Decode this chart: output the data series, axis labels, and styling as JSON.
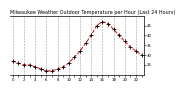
{
  "title": "Milwaukee Weather Outdoor Temperature per Hour (Last 24 Hours)",
  "hours": [
    0,
    1,
    2,
    3,
    4,
    5,
    6,
    7,
    8,
    9,
    10,
    11,
    12,
    13,
    14,
    15,
    16,
    17,
    18,
    19,
    20,
    21,
    22,
    23
  ],
  "temps": [
    27,
    26,
    25,
    25,
    24,
    23,
    22,
    22,
    23,
    24,
    26,
    29,
    32,
    36,
    40,
    45,
    47,
    46,
    43,
    40,
    37,
    34,
    32,
    30
  ],
  "line_color": "#dd0000",
  "marker_color": "#000000",
  "grid_color": "#888888",
  "bg_color": "#ffffff",
  "title_fontsize": 3.5,
  "tick_fontsize": 2.8,
  "ylim": [
    20,
    50
  ],
  "yticks": [
    25,
    30,
    35,
    40,
    45
  ],
  "xtick_every": 1
}
